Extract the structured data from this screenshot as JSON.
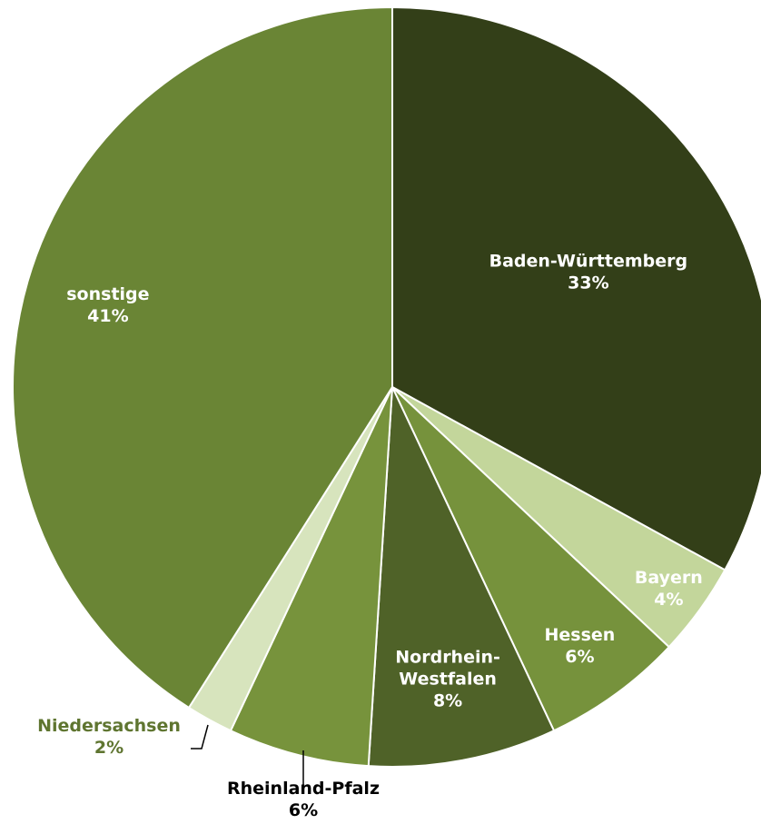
{
  "chart_data": {
    "type": "pie",
    "slices": [
      {
        "label": "Baden-Württemberg",
        "pct_label": "33%",
        "value": 33,
        "color": "#333f18",
        "label_color": "#ffffff"
      },
      {
        "label": "Bayern",
        "pct_label": "4%",
        "value": 4,
        "color": "#c3d69b",
        "label_color": "#ffffff"
      },
      {
        "label": "Hessen",
        "pct_label": "6%",
        "value": 6,
        "color": "#76923c",
        "label_color": "#ffffff"
      },
      {
        "label": "Nordrhein-Westfalen",
        "label_lines": [
          "Nordrhein-",
          "Westfalen"
        ],
        "pct_label": "8%",
        "value": 8,
        "color": "#4f6228",
        "label_color": "#ffffff"
      },
      {
        "label": "Rheinland-Pfalz",
        "pct_label": "6%",
        "value": 6,
        "color": "#77933c",
        "label_color": "#000000"
      },
      {
        "label": "Niedersachsen",
        "pct_label": "2%",
        "value": 2,
        "color": "#d7e4bd",
        "label_color": "#5f7530"
      },
      {
        "label": "sonstige",
        "pct_label": "41%",
        "value": 41,
        "color": "#6a8535",
        "label_color": "#ffffff"
      }
    ]
  }
}
